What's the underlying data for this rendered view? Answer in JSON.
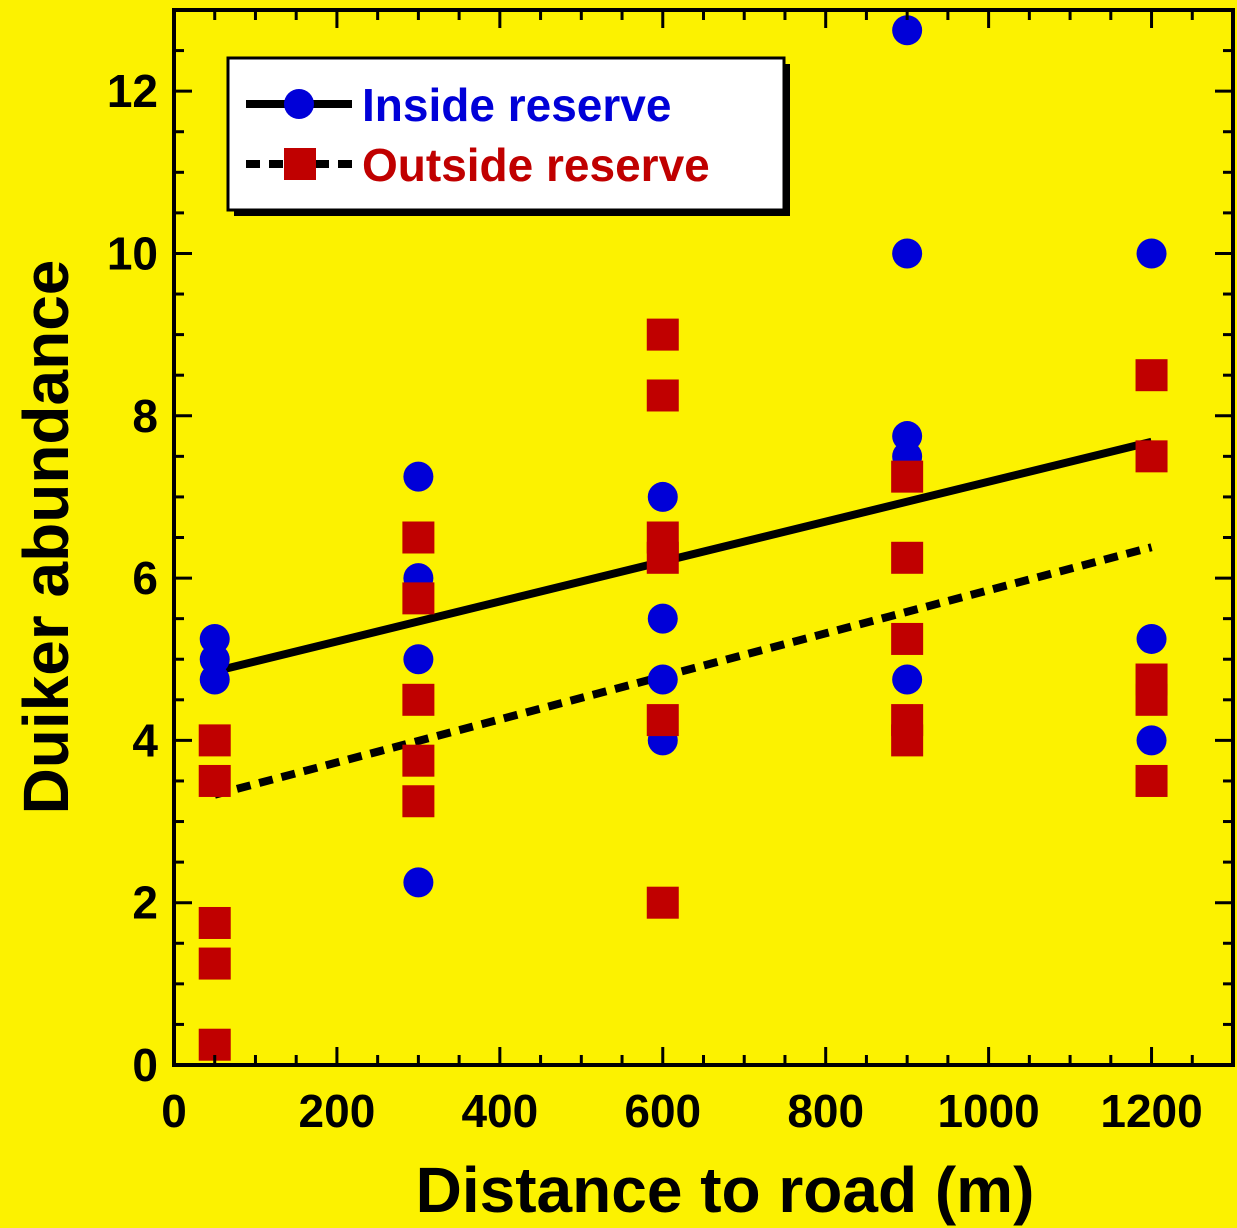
{
  "chart_data": {
    "type": "scatter",
    "xlabel": "Distance to road (m)",
    "ylabel": "Duiker abundance",
    "xlim": [
      0,
      1300
    ],
    "ylim": [
      0,
      13
    ],
    "x_ticks": [
      0,
      200,
      400,
      600,
      800,
      1000,
      1200
    ],
    "y_ticks": [
      0,
      2,
      4,
      6,
      8,
      10,
      12
    ],
    "legend_position": "top-left",
    "grid": false,
    "colors": {
      "background": "#fcf200",
      "inside": "#0000d8",
      "outside": "#c00000",
      "line": "#000000"
    },
    "series": [
      {
        "name": "Inside reserve",
        "marker": "circle",
        "line_style": "solid",
        "points": [
          [
            50,
            5.25
          ],
          [
            50,
            5.0
          ],
          [
            50,
            4.75
          ],
          [
            300,
            7.25
          ],
          [
            300,
            6.0
          ],
          [
            300,
            5.0
          ],
          [
            300,
            2.25
          ],
          [
            600,
            7.0
          ],
          [
            600,
            5.5
          ],
          [
            600,
            4.75
          ],
          [
            600,
            4.0
          ],
          [
            900,
            12.75
          ],
          [
            900,
            10.0
          ],
          [
            900,
            7.75
          ],
          [
            900,
            7.5
          ],
          [
            900,
            4.75
          ],
          [
            1200,
            10.0
          ],
          [
            1200,
            5.25
          ],
          [
            1200,
            4.0
          ]
        ],
        "fit": [
          [
            50,
            4.85
          ],
          [
            1200,
            7.68
          ]
        ]
      },
      {
        "name": "Outside reserve",
        "marker": "square",
        "line_style": "dashed",
        "points": [
          [
            50,
            4.0
          ],
          [
            50,
            3.5
          ],
          [
            50,
            1.75
          ],
          [
            50,
            1.25
          ],
          [
            50,
            0.25
          ],
          [
            300,
            6.5
          ],
          [
            300,
            5.75
          ],
          [
            300,
            4.5
          ],
          [
            300,
            3.75
          ],
          [
            300,
            3.25
          ],
          [
            600,
            9.0
          ],
          [
            600,
            8.25
          ],
          [
            600,
            6.5
          ],
          [
            600,
            6.25
          ],
          [
            600,
            4.25
          ],
          [
            600,
            2.0
          ],
          [
            900,
            7.25
          ],
          [
            900,
            6.25
          ],
          [
            900,
            5.25
          ],
          [
            900,
            4.25
          ],
          [
            900,
            4.0
          ],
          [
            1200,
            8.5
          ],
          [
            1200,
            7.5
          ],
          [
            1200,
            4.75
          ],
          [
            1200,
            4.5
          ],
          [
            1200,
            3.5
          ]
        ],
        "fit": [
          [
            50,
            3.33
          ],
          [
            1200,
            6.38
          ]
        ]
      }
    ]
  }
}
